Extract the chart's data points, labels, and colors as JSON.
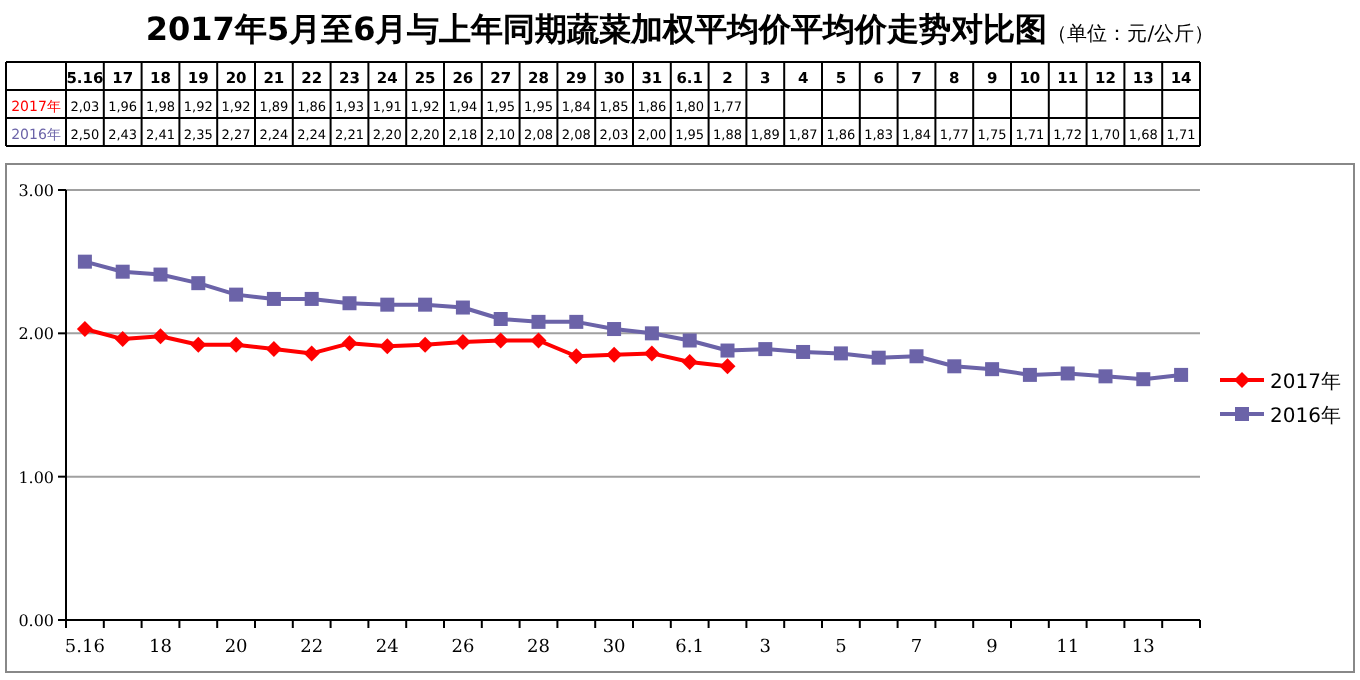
{
  "chart_data": {
    "type": "line",
    "title": "2017年5月至6月与上年同期蔬菜加权平均价平均价走势对比图",
    "subtitle": "（单位：元/公斤）",
    "categories": [
      "5.16",
      "17",
      "18",
      "19",
      "20",
      "21",
      "22",
      "23",
      "24",
      "25",
      "26",
      "27",
      "28",
      "29",
      "30",
      "31",
      "6.1",
      "2",
      "3",
      "4",
      "5",
      "6",
      "7",
      "8",
      "9",
      "10",
      "11",
      "12",
      "13",
      "14"
    ],
    "series": [
      {
        "name": "2017年",
        "color": "#ff0000",
        "marker": "diamond",
        "values": [
          2.03,
          1.96,
          1.98,
          1.92,
          1.92,
          1.89,
          1.86,
          1.93,
          1.91,
          1.92,
          1.94,
          1.95,
          1.95,
          1.84,
          1.85,
          1.86,
          1.8,
          1.77,
          null,
          null,
          null,
          null,
          null,
          null,
          null,
          null,
          null,
          null,
          null,
          null
        ],
        "value_labels": [
          "2,03",
          "1,96",
          "1,98",
          "1,92",
          "1,92",
          "1,89",
          "1,86",
          "1,93",
          "1,91",
          "1,92",
          "1,94",
          "1,95",
          "1,95",
          "1,84",
          "1,85",
          "1,86",
          "1,80",
          "1,77",
          null,
          null,
          null,
          null,
          null,
          null,
          null,
          null,
          null,
          null,
          null,
          null
        ]
      },
      {
        "name": "2016年",
        "color": "#6b63a8",
        "marker": "square",
        "values": [
          2.5,
          2.43,
          2.41,
          2.35,
          2.27,
          2.24,
          2.24,
          2.21,
          2.2,
          2.2,
          2.18,
          2.1,
          2.08,
          2.08,
          2.03,
          2.0,
          1.95,
          1.88,
          1.89,
          1.87,
          1.86,
          1.83,
          1.84,
          1.77,
          1.75,
          1.71,
          1.72,
          1.7,
          1.68,
          1.71
        ],
        "value_labels": [
          "2,50",
          "2,43",
          "2,41",
          "2,35",
          "2,27",
          "2,24",
          "2,24",
          "2,21",
          "2,20",
          "2,20",
          "2,18",
          "2,10",
          "2,08",
          "2,08",
          "2,03",
          "2,00",
          "1,95",
          "1,88",
          "1,89",
          "1,87",
          "1,86",
          "1,83",
          "1,84",
          "1,77",
          "1,75",
          "1,71",
          "1,72",
          "1,70",
          "1,68",
          "1,71"
        ]
      }
    ],
    "ylim": [
      0,
      3
    ],
    "yticks": [
      {
        "value": 0,
        "label": "0.00"
      },
      {
        "value": 1,
        "label": "1.00"
      },
      {
        "value": 2,
        "label": "2.00"
      },
      {
        "value": 3,
        "label": "3.00"
      }
    ],
    "grid": "y",
    "legend": "right"
  }
}
